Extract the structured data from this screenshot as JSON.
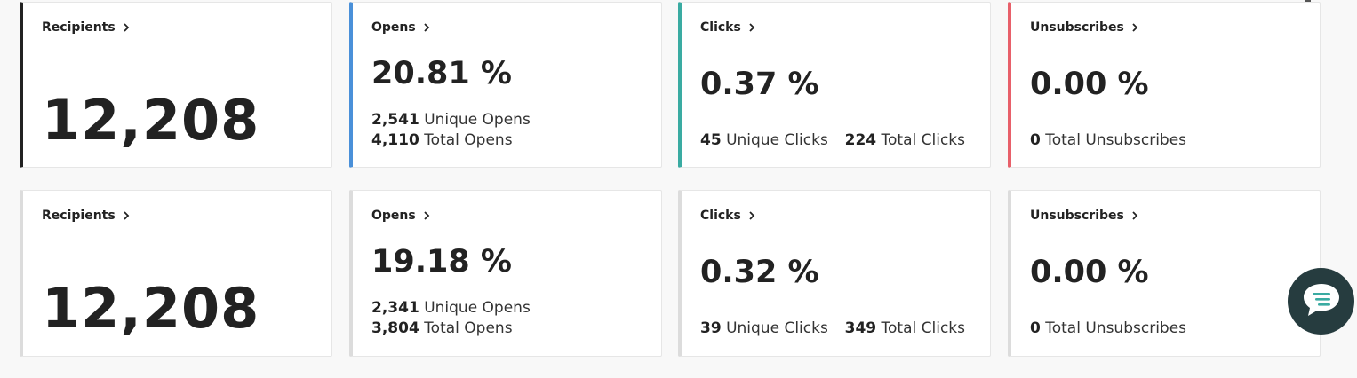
{
  "colors": {
    "recipients_accent": "#222222",
    "opens_accent": "#4a90d9",
    "clicks_accent": "#3aaba2",
    "unsubscribes_accent": "#e8606a",
    "inactive_accent": "#dcdcdc",
    "chat_bg": "#263c3f"
  },
  "row1": {
    "recipients": {
      "title": "Recipients",
      "value": "12,208"
    },
    "opens": {
      "title": "Opens",
      "percent": "20.81 %",
      "unique_count": "2,541",
      "unique_label": "Unique Opens",
      "total_count": "4,110",
      "total_label": "Total Opens"
    },
    "clicks": {
      "title": "Clicks",
      "percent": "0.37 %",
      "unique_count": "45",
      "unique_label": "Unique Clicks",
      "total_count": "224",
      "total_label": "Total Clicks"
    },
    "unsubscribes": {
      "title": "Unsubscribes",
      "percent": "0.00 %",
      "total_count": "0",
      "total_label": "Total Unsubscribes"
    }
  },
  "row2": {
    "recipients": {
      "title": "Recipients",
      "value": "12,208"
    },
    "opens": {
      "title": "Opens",
      "percent": "19.18 %",
      "unique_count": "2,341",
      "unique_label": "Unique Opens",
      "total_count": "3,804",
      "total_label": "Total Opens"
    },
    "clicks": {
      "title": "Clicks",
      "percent": "0.32 %",
      "unique_count": "39",
      "unique_label": "Unique Clicks",
      "total_count": "349",
      "total_label": "Total Clicks"
    },
    "unsubscribes": {
      "title": "Unsubscribes",
      "percent": "0.00 %",
      "total_count": "0",
      "total_label": "Total Unsubscribes"
    }
  },
  "icons": {
    "title_chevron": "chevron-right-icon",
    "chat": "chat-bubble-icon"
  }
}
